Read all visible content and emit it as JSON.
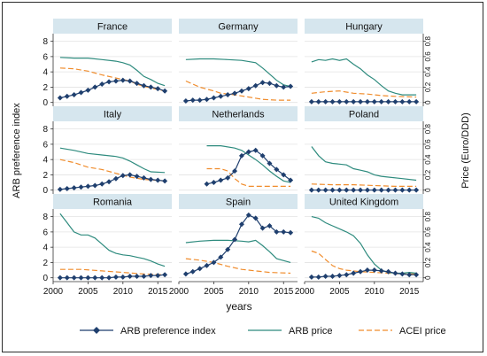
{
  "chart_data": {
    "type": "line",
    "y_left_label": "ARB preference index",
    "y_right_label": "Price (Euro/DDD)",
    "x_label": "years",
    "x_ticks": [
      2000,
      2005,
      2010,
      2015
    ],
    "y_left_ticks": [
      0,
      2,
      4,
      6,
      8
    ],
    "y_right_ticks": [
      0,
      0.2,
      0.4,
      0.6,
      0.8
    ],
    "y_right_tick_labels": [
      "0",
      "0.2",
      "0.4",
      "0.6",
      "0.8"
    ],
    "xlim": [
      2000,
      2017
    ],
    "ylim_left": [
      -0.5,
      9
    ],
    "ylim_right": [
      -0.05,
      0.9
    ],
    "grid": true,
    "legend_position": "bottom",
    "legend": [
      {
        "key": "arb_index",
        "label": "ARB preference index",
        "color": "#1f3f6e"
      },
      {
        "key": "arb_price",
        "label": "ARB price",
        "color": "#2e8b7e"
      },
      {
        "key": "acei_price",
        "label": "ACEI price",
        "color": "#f08c2c"
      }
    ],
    "colors": {
      "arb_index": "#1f3f6e",
      "arb_price": "#2e8b7e",
      "acei_price": "#f08c2c",
      "panel_header": "#d6e6ee"
    },
    "panels": [
      {
        "title": "France",
        "arb_index": {
          "x": [
            2001,
            2002,
            2003,
            2004,
            2005,
            2006,
            2007,
            2008,
            2009,
            2010,
            2011,
            2012,
            2013,
            2014,
            2015,
            2016
          ],
          "y": [
            0.6,
            0.8,
            1.0,
            1.3,
            1.6,
            2.0,
            2.4,
            2.7,
            2.8,
            2.9,
            2.8,
            2.5,
            2.2,
            2.0,
            1.8,
            1.5
          ]
        },
        "arb_price": {
          "x": [
            2001,
            2003,
            2005,
            2007,
            2009,
            2010,
            2011,
            2012,
            2013,
            2014,
            2015,
            2016
          ],
          "y": [
            0.59,
            0.58,
            0.58,
            0.56,
            0.54,
            0.52,
            0.49,
            0.42,
            0.34,
            0.3,
            0.25,
            0.22
          ]
        },
        "acei_price": {
          "x": [
            2001,
            2003,
            2005,
            2007,
            2009,
            2011,
            2012,
            2013,
            2014,
            2015,
            2016
          ],
          "y": [
            0.45,
            0.44,
            0.41,
            0.36,
            0.32,
            0.28,
            0.24,
            0.21,
            0.19,
            0.17,
            0.15
          ]
        }
      },
      {
        "title": "Germany",
        "arb_index": {
          "x": [
            2001,
            2002,
            2003,
            2004,
            2005,
            2006,
            2007,
            2008,
            2009,
            2010,
            2011,
            2012,
            2013,
            2014,
            2015,
            2016
          ],
          "y": [
            0.2,
            0.3,
            0.3,
            0.4,
            0.6,
            0.8,
            1.0,
            1.2,
            1.5,
            1.8,
            2.2,
            2.6,
            2.5,
            2.2,
            2.0,
            2.1
          ]
        },
        "arb_price": {
          "x": [
            2001,
            2003,
            2005,
            2007,
            2009,
            2011,
            2012,
            2013,
            2014,
            2015,
            2016
          ],
          "y": [
            0.56,
            0.57,
            0.57,
            0.56,
            0.55,
            0.52,
            0.45,
            0.37,
            0.29,
            0.23,
            0.21
          ]
        },
        "acei_price": {
          "x": [
            2001,
            2003,
            2005,
            2006,
            2008,
            2010,
            2012,
            2014,
            2016
          ],
          "y": [
            0.28,
            0.2,
            0.15,
            0.12,
            0.1,
            0.07,
            0.04,
            0.03,
            0.03
          ]
        }
      },
      {
        "title": "Hungary",
        "arb_index": {
          "x": [
            2001,
            2002,
            2003,
            2004,
            2005,
            2006,
            2007,
            2008,
            2009,
            2010,
            2011,
            2012,
            2013,
            2014,
            2015,
            2016
          ],
          "y": [
            0.1,
            0.1,
            0.1,
            0.1,
            0.1,
            0.1,
            0.1,
            0.1,
            0.1,
            0.1,
            0.1,
            0.1,
            0.1,
            0.1,
            0.1,
            0.1
          ]
        },
        "arb_price": {
          "x": [
            2001,
            2002,
            2003,
            2004,
            2005,
            2006,
            2007,
            2008,
            2009,
            2010,
            2011,
            2012,
            2013,
            2014,
            2016
          ],
          "y": [
            0.53,
            0.56,
            0.55,
            0.57,
            0.55,
            0.57,
            0.5,
            0.44,
            0.36,
            0.3,
            0.22,
            0.15,
            0.12,
            0.1,
            0.1
          ]
        },
        "acei_price": {
          "x": [
            2001,
            2003,
            2005,
            2007,
            2009,
            2011,
            2013,
            2016
          ],
          "y": [
            0.12,
            0.14,
            0.15,
            0.12,
            0.11,
            0.09,
            0.08,
            0.07
          ]
        }
      },
      {
        "title": "Italy",
        "arb_index": {
          "x": [
            2001,
            2002,
            2003,
            2004,
            2005,
            2006,
            2007,
            2008,
            2009,
            2010,
            2011,
            2012,
            2013,
            2014,
            2015,
            2016
          ],
          "y": [
            0.1,
            0.2,
            0.3,
            0.4,
            0.5,
            0.6,
            0.8,
            1.1,
            1.5,
            1.9,
            2.0,
            1.8,
            1.6,
            1.4,
            1.3,
            1.2
          ]
        },
        "arb_price": {
          "x": [
            2001,
            2003,
            2005,
            2007,
            2009,
            2010,
            2011,
            2012,
            2013,
            2014,
            2016
          ],
          "y": [
            0.55,
            0.52,
            0.48,
            0.46,
            0.44,
            0.42,
            0.38,
            0.33,
            0.28,
            0.24,
            0.23
          ]
        },
        "acei_price": {
          "x": [
            2001,
            2003,
            2005,
            2007,
            2009,
            2011,
            2013,
            2016
          ],
          "y": [
            0.4,
            0.36,
            0.3,
            0.27,
            0.22,
            0.17,
            0.14,
            0.12
          ]
        }
      },
      {
        "title": "Netherlands",
        "arb_index": {
          "x": [
            2004,
            2005,
            2006,
            2007,
            2008,
            2009,
            2010,
            2011,
            2012,
            2013,
            2014,
            2015,
            2016
          ],
          "y": [
            0.8,
            1.0,
            1.3,
            1.6,
            2.5,
            4.5,
            5.0,
            5.2,
            4.5,
            3.5,
            2.7,
            2.0,
            1.3
          ]
        },
        "arb_price": {
          "x": [
            2004,
            2006,
            2008,
            2009,
            2010,
            2011,
            2012,
            2013,
            2014,
            2015,
            2016
          ],
          "y": [
            0.58,
            0.58,
            0.55,
            0.52,
            0.46,
            0.4,
            0.33,
            0.25,
            0.18,
            0.12,
            0.1
          ]
        },
        "acei_price": {
          "x": [
            2004,
            2006,
            2007,
            2008,
            2009,
            2010,
            2012,
            2014,
            2016
          ],
          "y": [
            0.28,
            0.28,
            0.25,
            0.15,
            0.08,
            0.05,
            0.05,
            0.05,
            0.05
          ]
        }
      },
      {
        "title": "Poland",
        "arb_index": {
          "x": [
            2001,
            2002,
            2003,
            2004,
            2005,
            2006,
            2007,
            2008,
            2009,
            2010,
            2011,
            2012,
            2013,
            2014,
            2015,
            2016
          ],
          "y": [
            0.0,
            0.0,
            0.0,
            0.0,
            0.0,
            0.0,
            0.0,
            0.0,
            0.0,
            0.0,
            0.0,
            0.0,
            0.0,
            0.0,
            0.0,
            0.0
          ]
        },
        "arb_price": {
          "x": [
            2001,
            2002,
            2003,
            2004,
            2005,
            2006,
            2007,
            2008,
            2009,
            2010,
            2011,
            2012,
            2014,
            2016
          ],
          "y": [
            0.57,
            0.45,
            0.37,
            0.35,
            0.34,
            0.33,
            0.28,
            0.26,
            0.24,
            0.2,
            0.18,
            0.17,
            0.15,
            0.13
          ]
        },
        "acei_price": {
          "x": [
            2001,
            2004,
            2007,
            2010,
            2013,
            2016
          ],
          "y": [
            0.08,
            0.07,
            0.07,
            0.06,
            0.05,
            0.05
          ]
        }
      },
      {
        "title": "Romania",
        "arb_index": {
          "x": [
            2001,
            2002,
            2003,
            2004,
            2005,
            2006,
            2007,
            2008,
            2009,
            2010,
            2011,
            2012,
            2013,
            2014,
            2015,
            2016
          ],
          "y": [
            0.0,
            0.0,
            0.0,
            0.0,
            0.0,
            0.0,
            0.0,
            0.0,
            0.1,
            0.1,
            0.2,
            0.2,
            0.2,
            0.3,
            0.3,
            0.4
          ]
        },
        "arb_price": {
          "x": [
            2001,
            2002,
            2003,
            2004,
            2005,
            2006,
            2007,
            2008,
            2009,
            2010,
            2011,
            2012,
            2013,
            2014,
            2015,
            2016
          ],
          "y": [
            0.84,
            0.72,
            0.6,
            0.56,
            0.56,
            0.52,
            0.44,
            0.36,
            0.32,
            0.3,
            0.29,
            0.27,
            0.25,
            0.22,
            0.18,
            0.15
          ]
        },
        "acei_price": {
          "x": [
            2001,
            2004,
            2007,
            2010,
            2013,
            2016
          ],
          "y": [
            0.11,
            0.11,
            0.09,
            0.07,
            0.05,
            0.04
          ]
        }
      },
      {
        "title": "Spain",
        "arb_index": {
          "x": [
            2001,
            2002,
            2003,
            2004,
            2005,
            2006,
            2007,
            2008,
            2009,
            2010,
            2011,
            2012,
            2013,
            2014,
            2015,
            2016
          ],
          "y": [
            0.5,
            0.8,
            1.2,
            1.6,
            2.0,
            2.7,
            3.7,
            5.0,
            7.0,
            8.2,
            7.8,
            6.5,
            6.8,
            6.0,
            6.0,
            5.9
          ]
        },
        "arb_price": {
          "x": [
            2001,
            2003,
            2005,
            2007,
            2009,
            2010,
            2011,
            2012,
            2013,
            2014,
            2016
          ],
          "y": [
            0.46,
            0.48,
            0.49,
            0.49,
            0.48,
            0.47,
            0.49,
            0.42,
            0.34,
            0.25,
            0.2
          ]
        },
        "acei_price": {
          "x": [
            2001,
            2003,
            2005,
            2007,
            2009,
            2011,
            2013,
            2016
          ],
          "y": [
            0.25,
            0.23,
            0.2,
            0.15,
            0.11,
            0.09,
            0.07,
            0.06
          ]
        }
      },
      {
        "title": "United Kingdom",
        "arb_index": {
          "x": [
            2001,
            2002,
            2003,
            2004,
            2005,
            2006,
            2007,
            2008,
            2009,
            2010,
            2011,
            2012,
            2013,
            2014,
            2015,
            2016
          ],
          "y": [
            0.1,
            0.1,
            0.2,
            0.2,
            0.3,
            0.4,
            0.6,
            0.8,
            1.0,
            1.0,
            0.9,
            0.8,
            0.6,
            0.5,
            0.4,
            0.4
          ]
        },
        "arb_price": {
          "x": [
            2001,
            2002,
            2003,
            2004,
            2005,
            2006,
            2007,
            2008,
            2009,
            2010,
            2011,
            2012,
            2013,
            2014,
            2015,
            2016
          ],
          "y": [
            0.8,
            0.78,
            0.72,
            0.68,
            0.64,
            0.6,
            0.55,
            0.45,
            0.3,
            0.18,
            0.1,
            0.07,
            0.06,
            0.06,
            0.07,
            0.06
          ]
        },
        "acei_price": {
          "x": [
            2001,
            2002,
            2003,
            2004,
            2005,
            2006,
            2008,
            2010,
            2012,
            2014,
            2016
          ],
          "y": [
            0.35,
            0.32,
            0.24,
            0.16,
            0.12,
            0.1,
            0.08,
            0.07,
            0.06,
            0.05,
            0.05
          ]
        }
      }
    ]
  }
}
